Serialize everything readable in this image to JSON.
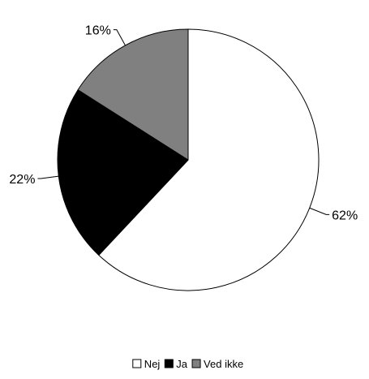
{
  "chart_data": {
    "type": "pie",
    "categories": [
      "Nej",
      "Ja",
      "Ved ikke"
    ],
    "values": [
      62,
      22,
      16
    ],
    "data_labels": [
      "62%",
      "22%",
      "16%"
    ],
    "colors": [
      "#ffffff",
      "#000000",
      "#808080"
    ],
    "start_angle_deg": 0,
    "direction": "clockwise",
    "legend_position": "bottom",
    "legend": {
      "items": [
        {
          "label": "Nej",
          "color": "#ffffff"
        },
        {
          "label": "Ja",
          "color": "#000000"
        },
        {
          "label": "Ved ikke",
          "color": "#808080"
        }
      ]
    }
  }
}
